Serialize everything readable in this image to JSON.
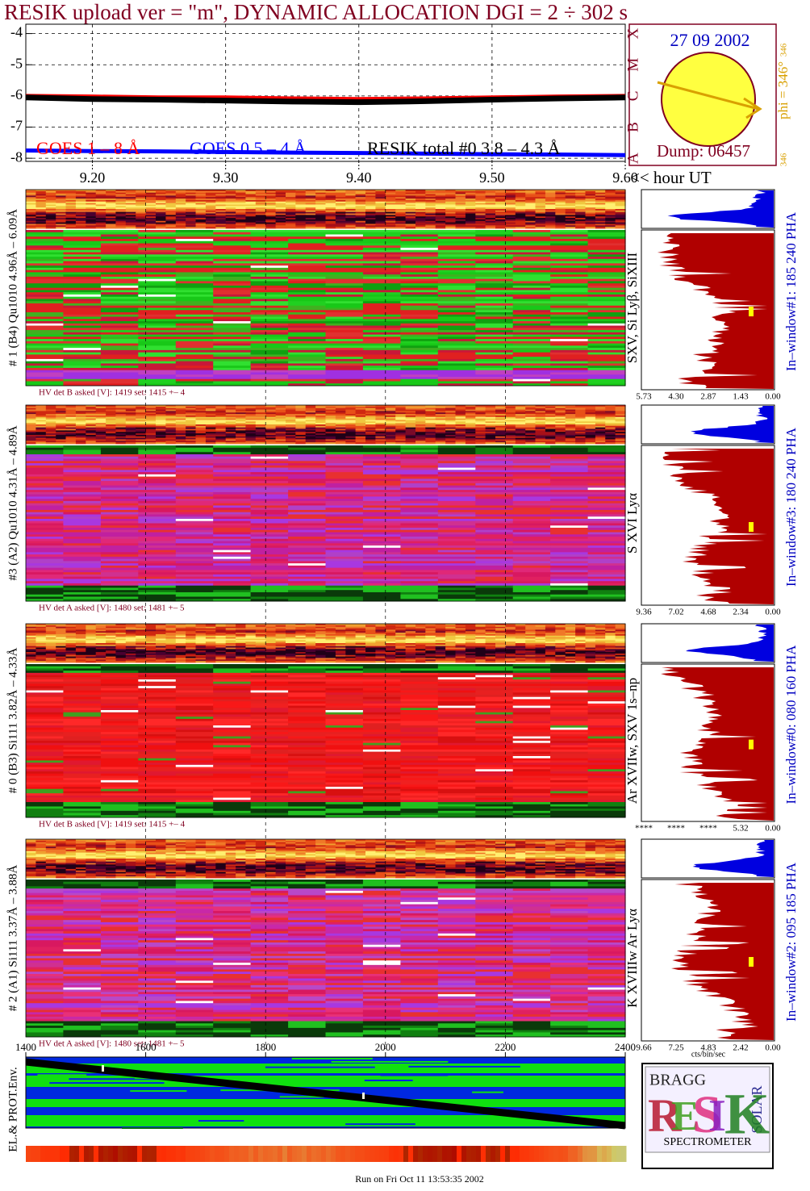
{
  "chart_data": [
    {
      "type": "line",
      "title": "RESIK upload ver = \"m\", DYNAMIC ALLOCATION  DGI =   2 ÷ 302 s",
      "xlabel": "<< hour UT",
      "x": [
        9.15,
        9.2,
        9.25,
        9.3,
        9.35,
        9.4,
        9.45,
        9.5,
        9.55,
        9.6
      ],
      "series": [
        {
          "name": "GOES 1 – 8 Å",
          "color": "#ff0000",
          "values": [
            -6.0,
            -6.02,
            -6.05,
            -6.05,
            -6.08,
            -6.1,
            -6.08,
            -6.05,
            -6.02,
            -6.0
          ]
        },
        {
          "name": "GOES 0.5 – 4 Å",
          "color": "#0000ff",
          "values": [
            -7.75,
            -7.77,
            -7.78,
            -7.8,
            -7.82,
            -7.83,
            -7.85,
            -7.87,
            -7.88,
            -7.9
          ]
        },
        {
          "name": "RESIK total #0  3.8 – 4.3 Å",
          "color": "#000000",
          "values": [
            -6.05,
            -6.1,
            -6.12,
            -6.15,
            -6.18,
            -6.2,
            -6.17,
            -6.12,
            -6.08,
            -6.05
          ]
        }
      ],
      "xlim": [
        9.15,
        9.6
      ],
      "xticks": [
        {
          "value": 9.2,
          "label": "9.20"
        },
        {
          "value": 9.3,
          "label": "9.30"
        },
        {
          "value": 9.4,
          "label": "9.40"
        },
        {
          "value": 9.5,
          "label": "9.50"
        },
        {
          "value": 9.6,
          "label": "9.60"
        }
      ],
      "ylim": [
        -8.1,
        -3.7
      ],
      "yticks": [
        -4,
        -5,
        -6,
        -7,
        -8
      ],
      "y2lim": [
        -8.1,
        -3.7
      ],
      "y2ticks": [
        {
          "value": -8,
          "label": "A"
        },
        {
          "value": -7,
          "label": "B"
        },
        {
          "value": -6,
          "label": "C"
        },
        {
          "value": -5,
          "label": "M"
        },
        {
          "value": -4,
          "label": "X"
        }
      ],
      "grid": true
    },
    {
      "type": "band",
      "ylabel": "EL.& PROT.Env.",
      "xlim": [
        1400,
        2400
      ],
      "xticks": [
        1400,
        1600,
        1800,
        2000,
        2200,
        2400
      ],
      "grid": true
    }
  ],
  "sun_panel": {
    "date": "27 09 2002",
    "phi": "phi = 346°",
    "phi_top": "346",
    "phi_bottom": "346",
    "dump": "Dump: 06457"
  },
  "channels": [
    {
      "label": "# 1 (B4) Qu1010 4.96Å – 6.09Å",
      "hv": "HV det B asked [V]:  1419 set:  1415 +–    4",
      "lines": "SXV, Si Lyβ, SiXIII",
      "window": "In–window#1:  185 240 PHA",
      "scale": [
        "5.73",
        "4.30",
        "2.87",
        "1.43",
        "0.00"
      ]
    },
    {
      "label": "#3 (A2) Qu1010  4.31Å – 4.89Å",
      "hv": "HV det A asked [V]:  1480 set:  1481 +–    5",
      "lines": "S XVI Lyα",
      "window": "In–window#3:  180 240 PHA",
      "scale": [
        "9.36",
        "7.02",
        "4.68",
        "2.34",
        "0.00"
      ]
    },
    {
      "label": "# 0 (B3) Si111  3.82Å – 4.33Å",
      "hv": "HV det B asked [V]:  1419 set:  1415 +–    4",
      "lines": "Ar XVIIw,  SXV 1s–np",
      "window": "In–window#0:  080 160 PHA",
      "scale": [
        "****",
        "****",
        "****",
        "5.32",
        "0.00"
      ]
    },
    {
      "label": "# 2 (A1) Si111  3.37Å – 3.88Å",
      "hv": "HV det A asked [V]:  1480 set:  1481 +–    5",
      "lines": "K XVIIIw  Ar Lyα",
      "window": "In–window#2:  095 185 PHA",
      "scale": [
        "9.66",
        "7.25",
        "4.83",
        "2.42",
        "0.00"
      ]
    }
  ],
  "histogram_unit": "cts/bin/sec",
  "logo": {
    "top": "BRAGG",
    "side": "SOLAR",
    "letters": [
      "R",
      "E",
      "S",
      "I",
      "K"
    ],
    "bottom": "SPECTROMETER"
  },
  "footer": "Run on Fri Oct 11 13:53:35 2002"
}
